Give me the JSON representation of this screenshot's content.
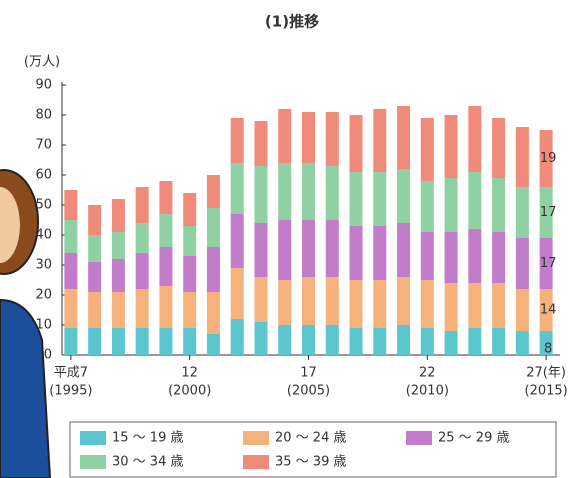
{
  "chart_data": {
    "type": "stacked_bar",
    "title": "(1)推移",
    "y_label": "(万人)",
    "categories": [
      "平成7",
      null,
      null,
      null,
      null,
      "12",
      null,
      null,
      null,
      null,
      "17",
      null,
      null,
      null,
      null,
      "22",
      null,
      null,
      null,
      null,
      "27(年)"
    ],
    "category_sublabels": [
      "(1995)",
      null,
      null,
      null,
      null,
      "(2000)",
      null,
      null,
      null,
      null,
      "(2005)",
      null,
      null,
      null,
      null,
      "(2010)",
      null,
      null,
      null,
      null,
      "(2015)"
    ],
    "series": [
      {
        "name": "15 ～ 19 歳",
        "color": "#5cc6cf",
        "values": [
          9,
          9,
          9,
          9,
          9,
          9,
          7,
          12,
          11,
          10,
          10,
          10,
          9,
          9,
          10,
          9,
          8,
          9,
          9,
          8,
          8
        ],
        "value_labels": [
          null,
          null,
          null,
          null,
          null,
          null,
          null,
          null,
          null,
          null,
          null,
          null,
          null,
          null,
          null,
          null,
          null,
          null,
          null,
          null,
          "8"
        ]
      },
      {
        "name": "20 ～ 24 歳",
        "color": "#f6b27c",
        "values": [
          13,
          12,
          12,
          13,
          14,
          12,
          14,
          17,
          15,
          15,
          16,
          16,
          16,
          16,
          16,
          16,
          16,
          15,
          15,
          14,
          14
        ],
        "value_labels": [
          null,
          null,
          null,
          null,
          null,
          null,
          null,
          null,
          null,
          null,
          null,
          null,
          null,
          null,
          null,
          null,
          null,
          null,
          null,
          null,
          "14"
        ]
      },
      {
        "name": "25 ～ 29 歳",
        "color": "#c27cc9",
        "values": [
          12,
          10,
          11,
          12,
          13,
          12,
          15,
          18,
          18,
          20,
          19,
          19,
          18,
          18,
          18,
          16,
          17,
          18,
          17,
          17,
          17
        ],
        "value_labels": [
          null,
          null,
          null,
          null,
          null,
          null,
          null,
          null,
          null,
          null,
          null,
          null,
          null,
          null,
          null,
          null,
          null,
          null,
          null,
          null,
          "17"
        ]
      },
      {
        "name": "30 ～ 34 歳",
        "color": "#8fd1a2",
        "values": [
          11,
          9,
          9,
          10,
          11,
          10,
          13,
          17,
          19,
          19,
          19,
          18,
          18,
          18,
          18,
          17,
          18,
          19,
          18,
          17,
          17
        ],
        "value_labels": [
          null,
          null,
          null,
          null,
          null,
          null,
          null,
          null,
          null,
          null,
          null,
          null,
          null,
          null,
          null,
          null,
          null,
          null,
          null,
          null,
          "17"
        ]
      },
      {
        "name": "35 ～ 39 歳",
        "color": "#f08a7a",
        "values": [
          10,
          10,
          11,
          12,
          11,
          11,
          11,
          15,
          15,
          18,
          17,
          18,
          19,
          21,
          21,
          21,
          21,
          22,
          20,
          20,
          19
        ],
        "value_labels": [
          null,
          null,
          null,
          null,
          null,
          null,
          null,
          null,
          null,
          null,
          null,
          null,
          null,
          null,
          null,
          null,
          null,
          null,
          null,
          null,
          "19"
        ]
      }
    ],
    "ylim": [
      0,
      90
    ],
    "yticks": [
      0,
      10,
      20,
      30,
      40,
      50,
      60,
      70,
      80,
      90
    ],
    "grid": false,
    "legend": "bottom"
  }
}
